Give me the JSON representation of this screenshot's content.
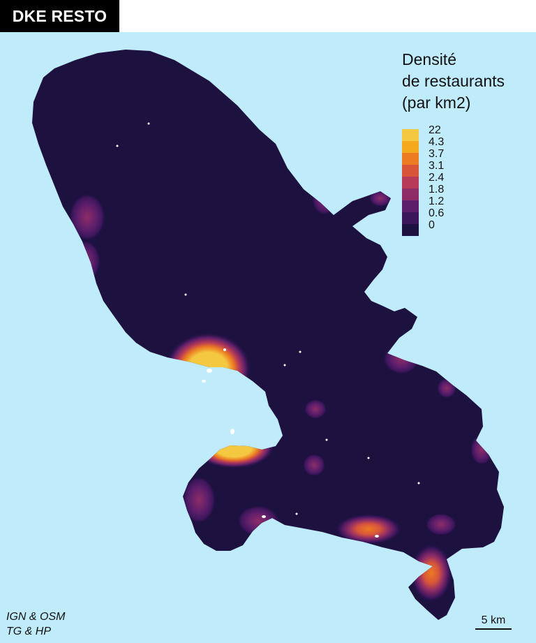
{
  "header": {
    "title": "DKE RESTO"
  },
  "legend": {
    "title_lines": [
      "Densité",
      "de restaurants",
      "(par km2)"
    ],
    "classes": [
      {
        "label": "22",
        "color": "#f5c841"
      },
      {
        "label": "4.3",
        "color": "#f4a81e"
      },
      {
        "label": "3.7",
        "color": "#ec7b22"
      },
      {
        "label": "3.1",
        "color": "#d8553a"
      },
      {
        "label": "2.4",
        "color": "#b73a58"
      },
      {
        "label": "1.8",
        "color": "#8e2c68"
      },
      {
        "label": "1.2",
        "color": "#5c1e6a"
      },
      {
        "label": "0.6",
        "color": "#3a155a"
      },
      {
        "label": "0",
        "color": "#1d1140"
      }
    ]
  },
  "credits": {
    "line1": "IGN & OSM",
    "line2": "TG & HP"
  },
  "scale": {
    "label": "5 km"
  },
  "colors": {
    "sea": "#c0ebfa",
    "land": "#1d1140",
    "text": "#111111"
  }
}
